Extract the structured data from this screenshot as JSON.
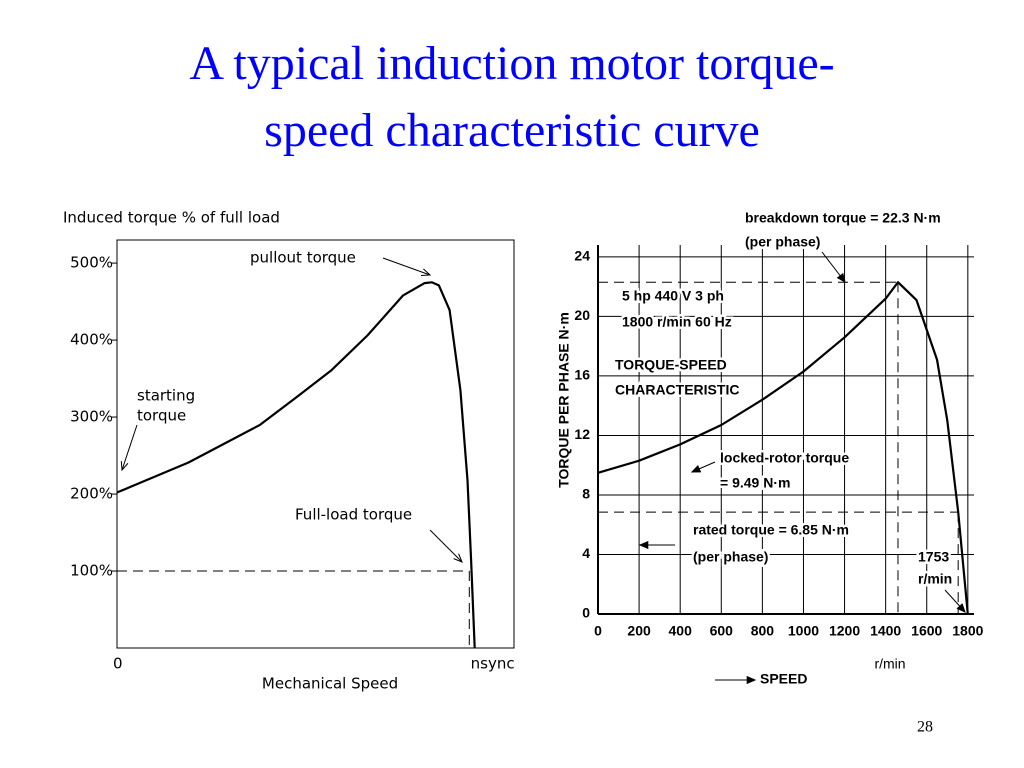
{
  "slide": {
    "title_lines": [
      "A typical induction motor torque-",
      "speed characteristic curve"
    ],
    "page_number": "28"
  },
  "chart_data": [
    {
      "type": "line",
      "y_label": "Induced torque % of full load",
      "x_label": "Mechanical Speed",
      "x": [
        0,
        0.2,
        0.4,
        0.5,
        0.6,
        0.7,
        0.8,
        0.86,
        0.88,
        0.9,
        0.93,
        0.96,
        0.98,
        0.99,
        1.0
      ],
      "series": [
        {
          "color": "#000000",
          "values": [
            202,
            241,
            290,
            325,
            361,
            406,
            458,
            474,
            475,
            471,
            439,
            335,
            218,
            114,
            0
          ]
        }
      ],
      "xlim": [
        0,
        1.11
      ],
      "ylim": [
        0,
        530
      ],
      "xticks": [
        0,
        {
          "value": 1,
          "label": "nsync"
        }
      ],
      "yticks": [
        {
          "value": 100,
          "label": "100%"
        },
        {
          "value": 200,
          "label": "200%"
        },
        {
          "value": 300,
          "label": "300%"
        },
        {
          "value": 400,
          "label": "400%"
        },
        {
          "value": 500,
          "label": "500%"
        }
      ],
      "grid": false,
      "markers": [
        {
          "x": 0.985,
          "y": 100
        }
      ],
      "annotations": [
        "pullout torque",
        "starting",
        "torque",
        "Full-load torque"
      ]
    },
    {
      "type": "line",
      "y_label": "TORQUE PER PHASE N·m",
      "x_unit": "r/min",
      "x_label": "SPEED",
      "x": [
        0,
        200,
        400,
        600,
        800,
        1000,
        1200,
        1400,
        1460,
        1550,
        1650,
        1700,
        1753,
        1800
      ],
      "series": [
        {
          "color": "#000000",
          "values": [
            9.49,
            10.3,
            11.4,
            12.7,
            14.4,
            16.3,
            18.6,
            21.2,
            22.3,
            21.1,
            17.1,
            13,
            6.85,
            0
          ]
        }
      ],
      "xlim": [
        0,
        1830
      ],
      "ylim": [
        0,
        24.8
      ],
      "xticks": [
        0,
        200,
        400,
        600,
        800,
        1000,
        1200,
        1400,
        1600,
        1800
      ],
      "yticks": [
        0,
        4,
        8,
        12,
        16,
        20,
        24
      ],
      "grid": true,
      "markers": [
        {
          "x": 1460,
          "y": 22.3
        },
        {
          "x": 1753,
          "y": 6.85
        }
      ],
      "annotations": [
        "breakdown torque = 22.3 N·m",
        "(per phase)",
        "5 hp 440 V 3 ph",
        "1800 r/min 60 Hz",
        "TORQUE-SPEED",
        "CHARACTERISTIC",
        "locked-rotor torque",
        "= 9.49 N·m",
        "rated torque = 6.85 N·m",
        "(per phase)",
        "1753",
        "r/min"
      ]
    }
  ]
}
